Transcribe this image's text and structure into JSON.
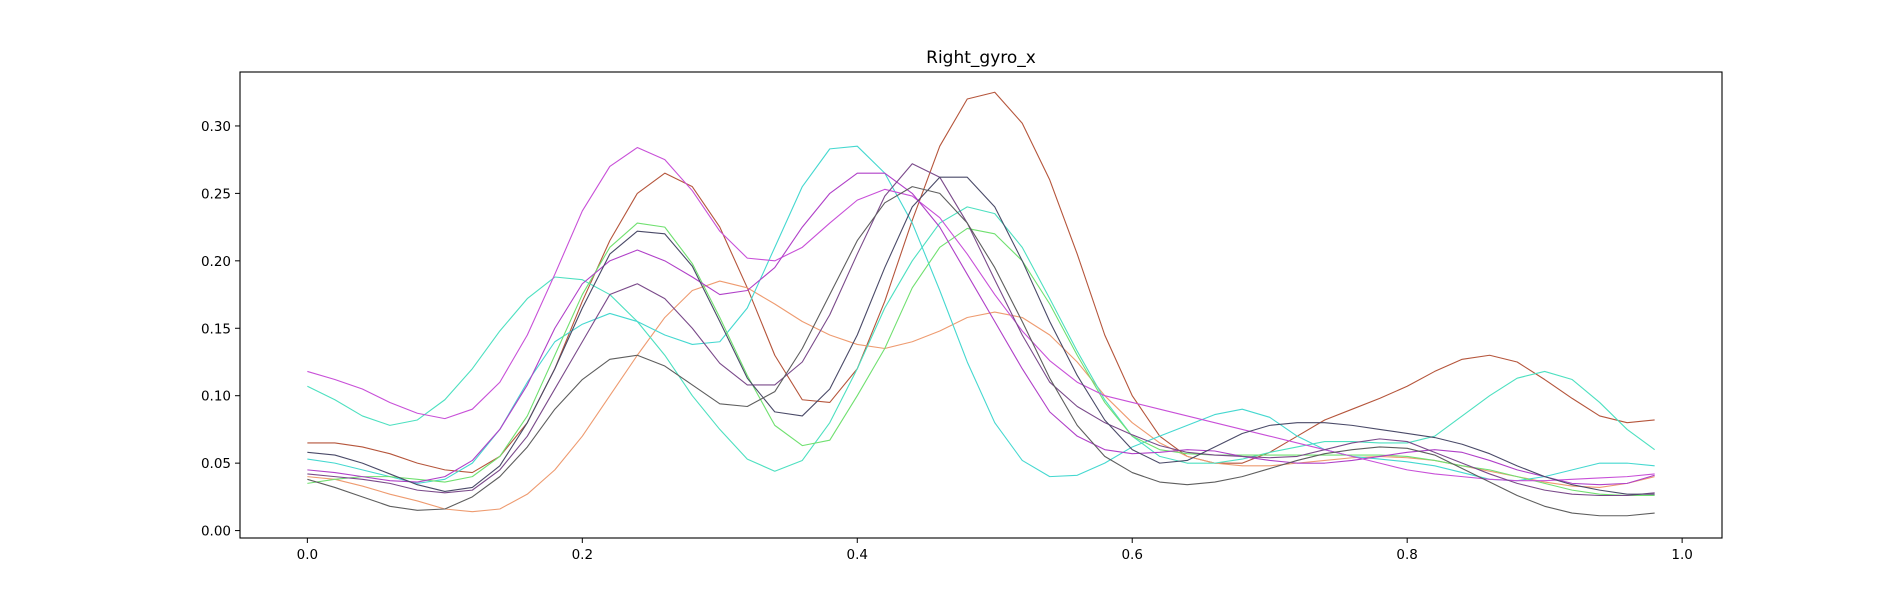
{
  "chart_data": {
    "type": "line",
    "title": "Right_gyro_x",
    "xlabel": "",
    "ylabel": "",
    "xlim": [
      -0.049,
      1.029
    ],
    "ylim": [
      -0.0055,
      0.34
    ],
    "xticks": [
      0.0,
      0.2,
      0.4,
      0.6,
      0.8,
      1.0
    ],
    "xtick_labels": [
      "0.0",
      "0.2",
      "0.4",
      "0.6",
      "0.8",
      "1.0"
    ],
    "yticks": [
      0.0,
      0.05,
      0.1,
      0.15,
      0.2,
      0.25,
      0.3
    ],
    "ytick_labels": [
      "0.00",
      "0.05",
      "0.10",
      "0.15",
      "0.20",
      "0.25",
      "0.30"
    ],
    "grid": false,
    "legend": "none",
    "x": [
      0.0,
      0.02,
      0.04,
      0.06,
      0.08,
      0.1,
      0.12,
      0.14,
      0.16,
      0.18,
      0.2,
      0.22,
      0.24,
      0.26,
      0.28,
      0.3,
      0.32,
      0.34,
      0.36,
      0.38,
      0.4,
      0.42,
      0.44,
      0.46,
      0.48,
      0.5,
      0.52,
      0.54,
      0.56,
      0.58,
      0.6,
      0.62,
      0.64,
      0.66,
      0.68,
      0.7,
      0.72,
      0.74,
      0.76,
      0.78,
      0.8,
      0.82,
      0.84,
      0.86,
      0.88,
      0.9,
      0.92,
      0.94,
      0.96,
      0.98
    ],
    "series": [
      {
        "color": "#b5553b",
        "values": [
          0.065,
          0.065,
          0.062,
          0.057,
          0.05,
          0.045,
          0.043,
          0.055,
          0.08,
          0.12,
          0.17,
          0.215,
          0.25,
          0.265,
          0.255,
          0.225,
          0.18,
          0.13,
          0.097,
          0.095,
          0.12,
          0.17,
          0.23,
          0.285,
          0.32,
          0.325,
          0.302,
          0.26,
          0.205,
          0.145,
          0.1,
          0.07,
          0.055,
          0.05,
          0.05,
          0.058,
          0.07,
          0.082,
          0.09,
          0.098,
          0.107,
          0.118,
          0.127,
          0.13,
          0.125,
          0.112,
          0.098,
          0.085,
          0.08,
          0.082
        ]
      },
      {
        "color": "#ee9b70",
        "values": [
          0.04,
          0.038,
          0.033,
          0.027,
          0.022,
          0.016,
          0.014,
          0.016,
          0.027,
          0.045,
          0.07,
          0.1,
          0.13,
          0.158,
          0.178,
          0.185,
          0.18,
          0.168,
          0.155,
          0.145,
          0.138,
          0.135,
          0.14,
          0.148,
          0.158,
          0.162,
          0.158,
          0.145,
          0.125,
          0.1,
          0.08,
          0.065,
          0.055,
          0.05,
          0.048,
          0.048,
          0.05,
          0.052,
          0.054,
          0.055,
          0.054,
          0.052,
          0.048,
          0.044,
          0.04,
          0.036,
          0.033,
          0.032,
          0.035,
          0.04
        ]
      },
      {
        "color": "#4de0c0",
        "values": [
          0.107,
          0.097,
          0.085,
          0.078,
          0.082,
          0.097,
          0.12,
          0.148,
          0.172,
          0.188,
          0.186,
          0.175,
          0.155,
          0.13,
          0.1,
          0.075,
          0.053,
          0.044,
          0.052,
          0.08,
          0.12,
          0.165,
          0.2,
          0.228,
          0.24,
          0.235,
          0.21,
          0.172,
          0.133,
          0.097,
          0.07,
          0.055,
          0.05,
          0.05,
          0.053,
          0.058,
          0.062,
          0.066,
          0.066,
          0.065,
          0.065,
          0.07,
          0.085,
          0.1,
          0.113,
          0.118,
          0.112,
          0.095,
          0.075,
          0.06
        ]
      },
      {
        "color": "#45d8d0",
        "values": [
          0.053,
          0.05,
          0.045,
          0.04,
          0.035,
          0.038,
          0.05,
          0.075,
          0.11,
          0.14,
          0.153,
          0.161,
          0.155,
          0.145,
          0.138,
          0.14,
          0.165,
          0.21,
          0.255,
          0.283,
          0.285,
          0.265,
          0.228,
          0.178,
          0.125,
          0.08,
          0.052,
          0.04,
          0.041,
          0.05,
          0.062,
          0.07,
          0.078,
          0.086,
          0.09,
          0.084,
          0.07,
          0.06,
          0.055,
          0.053,
          0.051,
          0.048,
          0.043,
          0.038,
          0.037,
          0.04,
          0.045,
          0.05,
          0.05,
          0.048
        ]
      },
      {
        "color": "#70e070",
        "values": [
          0.035,
          0.038,
          0.04,
          0.04,
          0.038,
          0.036,
          0.04,
          0.055,
          0.085,
          0.13,
          0.175,
          0.21,
          0.228,
          0.225,
          0.198,
          0.158,
          0.115,
          0.078,
          0.063,
          0.067,
          0.1,
          0.135,
          0.18,
          0.21,
          0.224,
          0.22,
          0.2,
          0.168,
          0.13,
          0.095,
          0.07,
          0.06,
          0.057,
          0.056,
          0.056,
          0.056,
          0.056,
          0.056,
          0.056,
          0.056,
          0.055,
          0.052,
          0.048,
          0.045,
          0.04,
          0.035,
          0.03,
          0.027,
          0.026,
          0.026
        ]
      },
      {
        "color": "#c850d8",
        "values": [
          0.118,
          0.112,
          0.105,
          0.095,
          0.087,
          0.083,
          0.09,
          0.11,
          0.145,
          0.19,
          0.237,
          0.27,
          0.284,
          0.275,
          0.252,
          0.222,
          0.202,
          0.2,
          0.21,
          0.228,
          0.245,
          0.253,
          0.248,
          0.232,
          0.205,
          0.175,
          0.148,
          0.126,
          0.11,
          0.1,
          0.095,
          0.09,
          0.085,
          0.08,
          0.075,
          0.07,
          0.065,
          0.06,
          0.055,
          0.05,
          0.045,
          0.042,
          0.04,
          0.038,
          0.037,
          0.037,
          0.038,
          0.039,
          0.04,
          0.042
        ]
      },
      {
        "color": "#b040c8",
        "values": [
          0.045,
          0.043,
          0.04,
          0.037,
          0.036,
          0.04,
          0.052,
          0.075,
          0.108,
          0.15,
          0.183,
          0.2,
          0.208,
          0.2,
          0.188,
          0.175,
          0.178,
          0.195,
          0.225,
          0.25,
          0.265,
          0.265,
          0.25,
          0.225,
          0.19,
          0.155,
          0.12,
          0.088,
          0.07,
          0.06,
          0.057,
          0.058,
          0.06,
          0.059,
          0.055,
          0.052,
          0.05,
          0.05,
          0.052,
          0.055,
          0.058,
          0.06,
          0.058,
          0.052,
          0.045,
          0.04,
          0.035,
          0.034,
          0.035,
          0.041
        ]
      },
      {
        "color": "#7a4a8a",
        "values": [
          0.042,
          0.04,
          0.038,
          0.035,
          0.03,
          0.028,
          0.03,
          0.045,
          0.07,
          0.105,
          0.14,
          0.175,
          0.183,
          0.172,
          0.15,
          0.124,
          0.108,
          0.108,
          0.125,
          0.16,
          0.205,
          0.248,
          0.272,
          0.262,
          0.228,
          0.186,
          0.145,
          0.11,
          0.092,
          0.08,
          0.071,
          0.063,
          0.058,
          0.056,
          0.055,
          0.054,
          0.055,
          0.06,
          0.065,
          0.068,
          0.066,
          0.058,
          0.05,
          0.042,
          0.035,
          0.03,
          0.027,
          0.026,
          0.026,
          0.028
        ]
      },
      {
        "color": "#4a4a68",
        "values": [
          0.058,
          0.056,
          0.05,
          0.042,
          0.034,
          0.029,
          0.032,
          0.048,
          0.08,
          0.12,
          0.165,
          0.205,
          0.222,
          0.22,
          0.196,
          0.155,
          0.113,
          0.088,
          0.085,
          0.105,
          0.145,
          0.195,
          0.24,
          0.262,
          0.262,
          0.24,
          0.2,
          0.155,
          0.115,
          0.082,
          0.06,
          0.05,
          0.052,
          0.062,
          0.072,
          0.078,
          0.08,
          0.08,
          0.078,
          0.075,
          0.072,
          0.069,
          0.064,
          0.057,
          0.048,
          0.04,
          0.034,
          0.03,
          0.027,
          0.027
        ]
      },
      {
        "color": "#5e5e5e",
        "values": [
          0.038,
          0.032,
          0.025,
          0.018,
          0.015,
          0.016,
          0.025,
          0.04,
          0.062,
          0.09,
          0.112,
          0.127,
          0.13,
          0.122,
          0.108,
          0.094,
          0.092,
          0.103,
          0.135,
          0.175,
          0.215,
          0.243,
          0.255,
          0.25,
          0.228,
          0.195,
          0.155,
          0.113,
          0.078,
          0.055,
          0.043,
          0.036,
          0.034,
          0.036,
          0.04,
          0.046,
          0.052,
          0.057,
          0.06,
          0.062,
          0.061,
          0.056,
          0.046,
          0.036,
          0.026,
          0.018,
          0.013,
          0.011,
          0.011,
          0.013
        ]
      }
    ]
  }
}
